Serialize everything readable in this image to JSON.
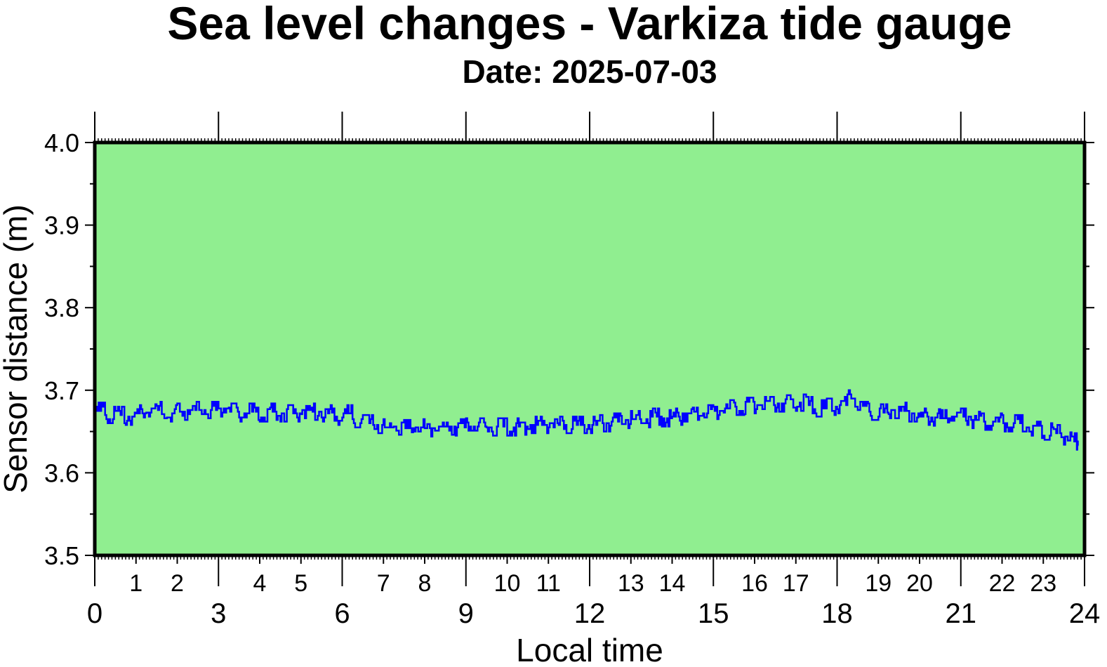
{
  "chart_data": {
    "type": "line",
    "title": "Sea level changes - Varkiza tide gauge",
    "subtitle": "Date: 2025-07-03",
    "xlabel": "Local time",
    "ylabel": "Sensor distance (m)",
    "xlim": [
      0,
      24
    ],
    "ylim": [
      3.5,
      4.0
    ],
    "x_major_ticks": [
      "0",
      "3",
      "6",
      "9",
      "12",
      "15",
      "18",
      "21",
      "24"
    ],
    "x_minor_ticks": [
      "1",
      "2",
      "4",
      "5",
      "7",
      "8",
      "10",
      "11",
      "13",
      "14",
      "16",
      "17",
      "19",
      "20",
      "22",
      "23"
    ],
    "y_ticks": [
      "3.5",
      "3.6",
      "3.7",
      "3.8",
      "3.9",
      "4.0"
    ],
    "grid": false,
    "colors": {
      "plot_background": "#90ee90",
      "line": "#0000ff",
      "frame": "#000000"
    },
    "series": [
      {
        "x": [
          0.0,
          0.25,
          0.5,
          0.75,
          1.0,
          1.25,
          1.5,
          1.75,
          2.0,
          2.25,
          2.5,
          2.75,
          3.0,
          3.25,
          3.5,
          3.75,
          4.0,
          4.25,
          4.5,
          4.75,
          5.0,
          5.25,
          5.5,
          5.75,
          6.0,
          6.25,
          6.5,
          6.75,
          7.0,
          7.25,
          7.5,
          7.75,
          8.0,
          8.25,
          8.5,
          8.75,
          9.0,
          9.25,
          9.5,
          9.75,
          10.0,
          10.25,
          10.5,
          10.75,
          11.0,
          11.25,
          11.5,
          11.75,
          12.0,
          12.25,
          12.5,
          12.75,
          13.0,
          13.25,
          13.5,
          13.75,
          14.0,
          14.25,
          14.5,
          14.75,
          15.0,
          15.25,
          15.5,
          15.75,
          16.0,
          16.25,
          16.5,
          16.75,
          17.0,
          17.25,
          17.5,
          17.75,
          18.0,
          18.25,
          18.5,
          18.75,
          19.0,
          19.25,
          19.5,
          19.75,
          20.0,
          20.25,
          20.5,
          20.75,
          21.0,
          21.25,
          21.5,
          21.75,
          22.0,
          22.25,
          22.5,
          22.75,
          23.0,
          23.25,
          23.5,
          23.75
        ],
        "y": [
          3.675,
          3.67,
          3.67,
          3.668,
          3.672,
          3.678,
          3.676,
          3.672,
          3.674,
          3.676,
          3.676,
          3.676,
          3.678,
          3.674,
          3.672,
          3.674,
          3.672,
          3.674,
          3.672,
          3.672,
          3.676,
          3.674,
          3.672,
          3.668,
          3.672,
          3.665,
          3.66,
          3.658,
          3.655,
          3.656,
          3.654,
          3.655,
          3.654,
          3.656,
          3.656,
          3.655,
          3.656,
          3.656,
          3.655,
          3.656,
          3.655,
          3.656,
          3.658,
          3.658,
          3.66,
          3.658,
          3.658,
          3.658,
          3.658,
          3.66,
          3.662,
          3.664,
          3.665,
          3.665,
          3.668,
          3.666,
          3.668,
          3.672,
          3.674,
          3.672,
          3.675,
          3.678,
          3.68,
          3.681,
          3.682,
          3.682,
          3.684,
          3.684,
          3.685,
          3.682,
          3.678,
          3.68,
          3.682,
          3.69,
          3.676,
          3.674,
          3.673,
          3.676,
          3.675,
          3.672,
          3.668,
          3.667,
          3.666,
          3.668,
          3.668,
          3.664,
          3.662,
          3.662,
          3.66,
          3.66,
          3.655,
          3.652,
          3.65,
          3.648,
          3.644,
          3.638
        ]
      }
    ]
  }
}
